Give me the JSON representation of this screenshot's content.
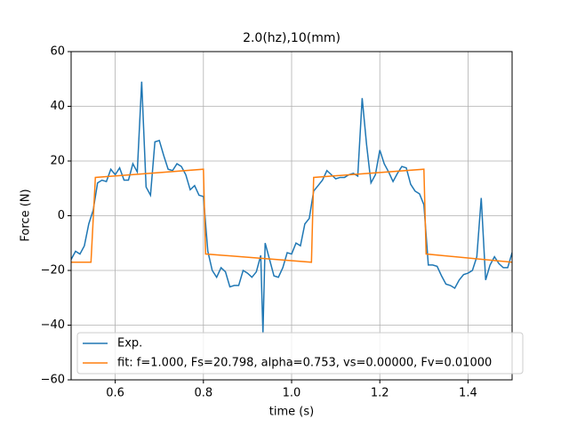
{
  "chart_data": {
    "type": "line",
    "title": "2.0(hz),10(mm)",
    "x_label": "time (s)",
    "y_label": "Force (N)",
    "xlim": [
      0.5,
      1.5
    ],
    "xticks": [
      0.6,
      0.8,
      {
        "value": 1.0,
        "label": "1.0"
      },
      1.2,
      1.4
    ],
    "ylim": [
      -60,
      60
    ],
    "yticks": [
      {
        "value": -60,
        "label": "−60"
      },
      {
        "value": -40,
        "label": "−40"
      },
      {
        "value": -20,
        "label": "−20"
      },
      0,
      20,
      40,
      60
    ],
    "grid": true,
    "legend": "lower left",
    "series": [
      {
        "name": "Exp.",
        "color": "#1f77b4",
        "x": [
          0.5,
          0.51,
          0.52,
          0.53,
          0.54,
          0.55,
          0.56,
          0.57,
          0.58,
          0.59,
          0.6,
          0.61,
          0.62,
          0.63,
          0.64,
          0.65,
          0.66,
          0.67,
          0.68,
          0.69,
          0.7,
          0.71,
          0.72,
          0.73,
          0.74,
          0.75,
          0.76,
          0.77,
          0.78,
          0.79,
          0.8,
          0.81,
          0.82,
          0.83,
          0.84,
          0.85,
          0.86,
          0.87,
          0.88,
          0.89,
          0.9,
          0.91,
          0.92,
          0.93,
          0.935,
          0.94,
          0.95,
          0.96,
          0.97,
          0.98,
          0.99,
          1.0,
          1.01,
          1.02,
          1.03,
          1.04,
          1.05,
          1.06,
          1.07,
          1.08,
          1.09,
          1.1,
          1.11,
          1.12,
          1.13,
          1.14,
          1.15,
          1.16,
          1.17,
          1.18,
          1.19,
          1.2,
          1.21,
          1.22,
          1.23,
          1.24,
          1.25,
          1.26,
          1.27,
          1.28,
          1.29,
          1.3,
          1.31,
          1.32,
          1.33,
          1.34,
          1.35,
          1.36,
          1.37,
          1.38,
          1.39,
          1.4,
          1.41,
          1.42,
          1.43,
          1.44,
          1.45,
          1.46,
          1.47,
          1.48,
          1.49,
          1.5
        ],
        "values": [
          -16,
          -13,
          -14,
          -11,
          -3,
          2,
          12,
          13,
          12.5,
          17,
          15,
          17.5,
          13,
          13,
          19,
          16,
          49,
          10.5,
          7.5,
          27,
          27.5,
          22,
          17,
          16.5,
          19,
          18,
          15,
          9.5,
          11,
          7.5,
          7,
          -13,
          -20,
          -22.5,
          -19,
          -20.5,
          -26,
          -25.5,
          -25.5,
          -20,
          -21,
          -22.5,
          -20.5,
          -14.5,
          -43,
          -10,
          -16,
          -22,
          -22.5,
          -19,
          -13.5,
          -14,
          -10,
          -11,
          -3,
          -1,
          9,
          11,
          13,
          16.5,
          15,
          13.5,
          14,
          14,
          15,
          15.5,
          14.5,
          43,
          26,
          12,
          15,
          24,
          19,
          16,
          12.5,
          15.5,
          18,
          17.5,
          11.5,
          9,
          8,
          4,
          -18,
          -18,
          -18.5,
          -22,
          -25,
          -25.5,
          -26.5,
          -23.5,
          -21.5,
          -21,
          -20,
          -15,
          6.5,
          -23.5,
          -18,
          -15,
          -17.5,
          -19,
          -19,
          -13.5
        ]
      },
      {
        "name": "fit: f=1.000, Fs=20.798, alpha=0.753, vs=0.00000, Fv=0.01000",
        "color": "#ff7f0e",
        "x": [
          0.5,
          0.545,
          0.555,
          0.8,
          0.805,
          1.045,
          1.05,
          1.3,
          1.305,
          1.5
        ],
        "values": [
          -17,
          -17,
          14,
          17,
          -14,
          -17,
          14,
          17,
          -14,
          -17
        ]
      }
    ]
  }
}
